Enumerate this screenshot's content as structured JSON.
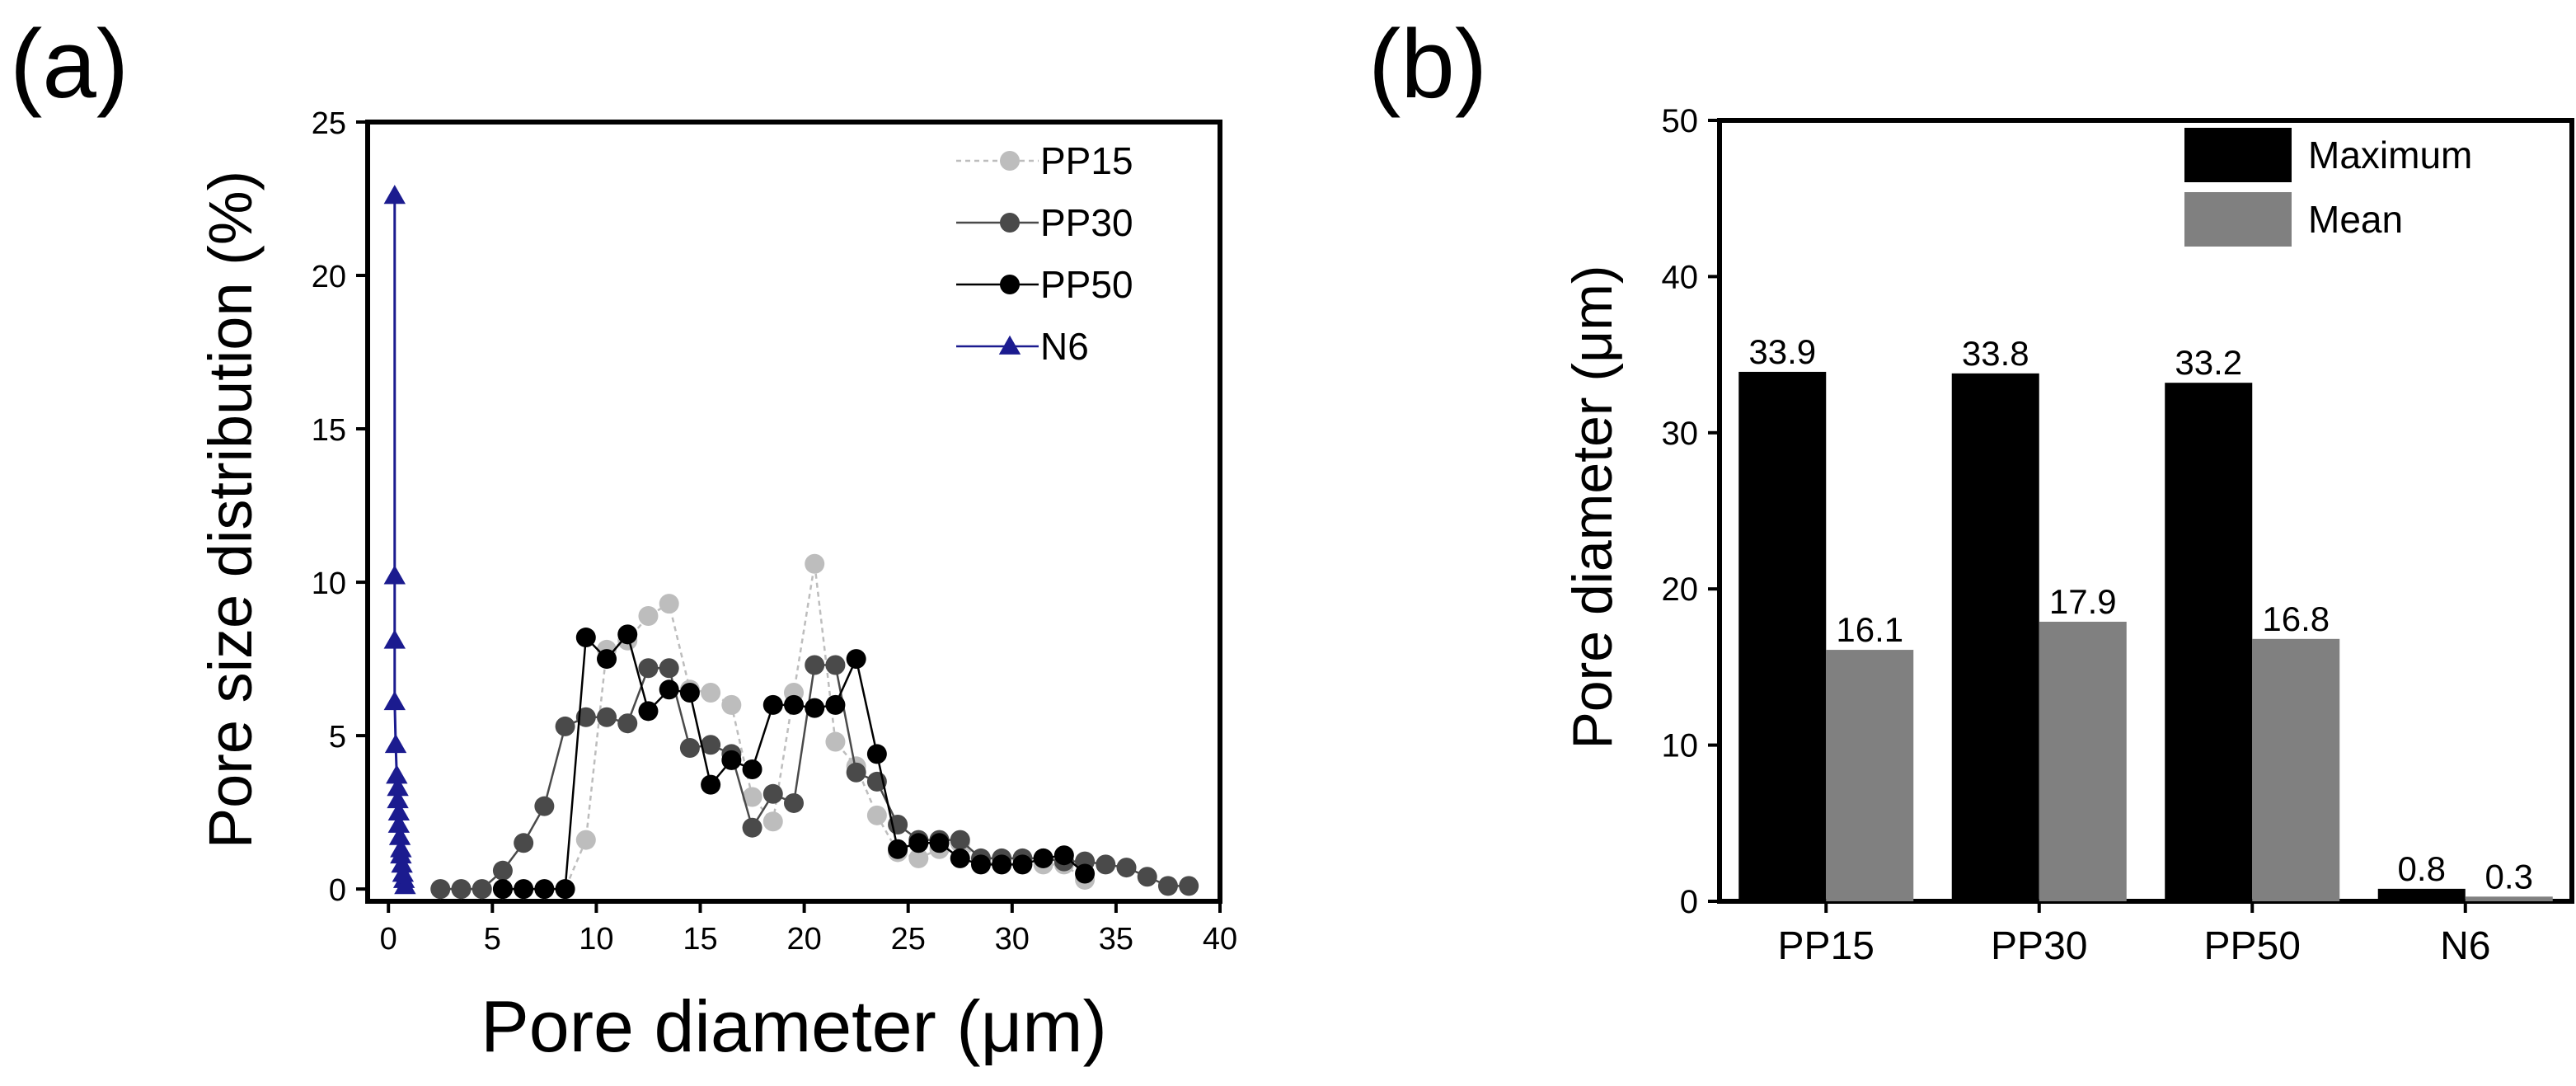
{
  "chart_data": [
    {
      "panel": "(a)",
      "type": "line",
      "xlabel": "Pore diameter (μm)",
      "ylabel": "Pore size distribution (%)",
      "xlim": [
        -1,
        40
      ],
      "ylim": [
        -0.4,
        25
      ],
      "xticks": [
        0,
        5,
        10,
        15,
        20,
        25,
        30,
        35,
        40
      ],
      "yticks": [
        0,
        5,
        10,
        15,
        20,
        25
      ],
      "legend_position": "top-right",
      "series": [
        {
          "name": "PP15",
          "color": "#bdbdbd",
          "marker": "circle",
          "dash": true,
          "x": [
            2.5,
            3.5,
            4.5,
            5.5,
            6.5,
            7.5,
            8.5,
            9.5,
            10.5,
            11.5,
            12.5,
            13.5,
            14.5,
            15.5,
            16.5,
            17.5,
            18.5,
            19.5,
            20.5,
            21.5,
            22.5,
            23.5,
            24.5,
            25.5,
            26.5,
            27.5,
            28.5,
            29.5,
            30.5,
            31.5,
            32.5,
            33.5
          ],
          "y": [
            0,
            0,
            0,
            0,
            0,
            0,
            0,
            1.6,
            7.8,
            8.1,
            8.9,
            9.3,
            6.5,
            6.4,
            6.0,
            3.0,
            2.2,
            6.4,
            10.6,
            4.8,
            4.0,
            2.4,
            1.2,
            1.0,
            1.3,
            1.5,
            0.9,
            0.8,
            0.8,
            0.8,
            0.8,
            0.3
          ]
        },
        {
          "name": "PP30",
          "color": "#4a4a4a",
          "marker": "circle",
          "dash": false,
          "x": [
            2.5,
            3.5,
            4.5,
            5.5,
            6.5,
            7.5,
            8.5,
            9.5,
            10.5,
            11.5,
            12.5,
            13.5,
            14.5,
            15.5,
            16.5,
            17.5,
            18.5,
            19.5,
            20.5,
            21.5,
            22.5,
            23.5,
            24.5,
            25.5,
            26.5,
            27.5,
            28.5,
            29.5,
            30.5,
            31.5,
            32.5,
            33.5,
            34.5,
            35.5,
            36.5,
            37.5,
            38.5
          ],
          "y": [
            0,
            0,
            0,
            0.6,
            1.5,
            2.7,
            5.3,
            5.6,
            5.6,
            5.4,
            7.2,
            7.2,
            4.6,
            4.7,
            4.4,
            2.0,
            3.1,
            2.8,
            7.3,
            7.3,
            3.8,
            3.5,
            2.1,
            1.6,
            1.6,
            1.6,
            1.0,
            1.0,
            1.0,
            1.0,
            0.9,
            0.9,
            0.8,
            0.7,
            0.4,
            0.1,
            0.1
          ]
        },
        {
          "name": "PP50",
          "color": "#000000",
          "marker": "circle",
          "dash": false,
          "x": [
            5.5,
            6.5,
            7.5,
            8.5,
            9.5,
            10.5,
            11.5,
            12.5,
            13.5,
            14.5,
            15.5,
            16.5,
            17.5,
            18.5,
            19.5,
            20.5,
            21.5,
            22.5,
            23.5,
            24.5,
            25.5,
            26.5,
            27.5,
            28.5,
            29.5,
            30.5,
            31.5,
            32.5,
            33.5
          ],
          "y": [
            0,
            0,
            0,
            0,
            8.2,
            7.5,
            8.3,
            5.8,
            6.5,
            6.4,
            3.4,
            4.2,
            3.9,
            6.0,
            6.0,
            5.9,
            6.0,
            7.5,
            4.4,
            1.3,
            1.5,
            1.5,
            1.0,
            0.8,
            0.8,
            0.8,
            1.0,
            1.1,
            0.5
          ]
        },
        {
          "name": "N6",
          "color": "#1b1b8f",
          "marker": "triangle",
          "dash": false,
          "x": [
            0.3,
            0.3,
            0.3,
            0.3,
            0.35,
            0.4,
            0.45,
            0.45,
            0.5,
            0.5,
            0.55,
            0.6,
            0.6,
            0.65,
            0.7,
            0.75,
            0.8
          ],
          "y": [
            22.6,
            10.2,
            8.1,
            6.1,
            4.7,
            3.7,
            3.3,
            2.9,
            2.5,
            2.1,
            1.7,
            1.3,
            1.1,
            0.8,
            0.5,
            0.3,
            0.1
          ]
        }
      ]
    },
    {
      "panel": "(b)",
      "type": "bar",
      "ylabel": "Pore diameter (μm)",
      "ylim": [
        0,
        50
      ],
      "yticks": [
        0,
        10,
        20,
        30,
        40,
        50
      ],
      "categories": [
        "PP15",
        "PP30",
        "PP50",
        "N6"
      ],
      "legend_position": "top-right",
      "series": [
        {
          "name": "Maximum",
          "color": "#000000",
          "values": [
            33.9,
            33.8,
            33.2,
            0.8
          ]
        },
        {
          "name": "Mean",
          "color": "#808080",
          "values": [
            16.1,
            17.9,
            16.8,
            0.3
          ]
        }
      ]
    }
  ]
}
